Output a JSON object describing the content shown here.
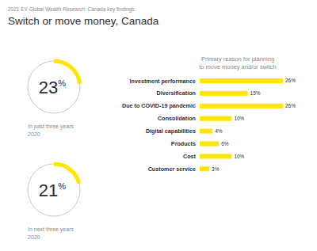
{
  "header": {
    "kicker": "2021 EY Global Wealth Research: Canada key findings",
    "title": "Switch or move money, Canada"
  },
  "chart_data": [
    {
      "type": "gauge",
      "values": [
        23
      ],
      "value_labels": [
        "23%"
      ],
      "ylim": [
        0,
        100
      ],
      "color": "#ffe600",
      "data_labels": true,
      "annotations": [
        "In past three years",
        "2020"
      ]
    },
    {
      "type": "gauge",
      "values": [
        21
      ],
      "value_labels": [
        "21%"
      ],
      "ylim": [
        0,
        100
      ],
      "color": "#ffe600",
      "data_labels": true,
      "annotations": [
        "In next three years",
        "2020"
      ]
    },
    {
      "type": "bar",
      "orientation": "horizontal",
      "title": [
        "Primary reason for planning",
        "to move money and/or switch"
      ],
      "categories": [
        "Investment performance",
        "Diversification",
        "Due to COVID-19 pandemic",
        "Consolidation",
        "Digital capabilities",
        "Products",
        "Cost",
        "Customer service"
      ],
      "values": [
        26,
        15,
        26,
        10,
        4,
        6,
        10,
        3
      ],
      "value_labels": [
        "26%",
        "15%",
        "26%",
        "10%",
        "4%",
        "6%",
        "10%",
        "3%"
      ],
      "xlim": [
        0,
        26
      ],
      "color": "#ffe600",
      "data_labels": true,
      "tick_labels": "y",
      "grid": false
    }
  ]
}
